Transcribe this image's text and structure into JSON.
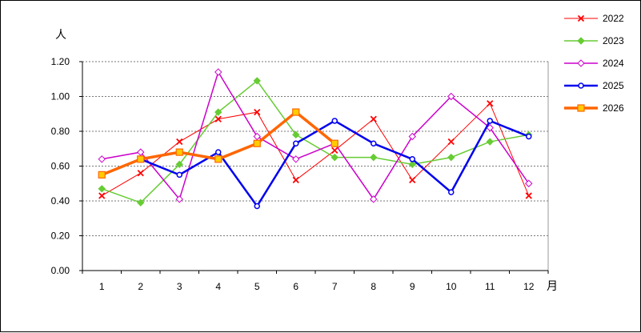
{
  "chart_data": {
    "type": "line",
    "title": "",
    "ylabel": "人",
    "xlabel": "月",
    "categories": [
      "1",
      "2",
      "3",
      "4",
      "5",
      "6",
      "7",
      "8",
      "9",
      "10",
      "11",
      "12"
    ],
    "ylim": [
      0,
      1.2
    ],
    "yticks": [
      "0.00",
      "0.20",
      "0.40",
      "0.60",
      "0.80",
      "1.00",
      "1.20"
    ],
    "grid": "horizontal dashed",
    "legend_position": "right",
    "series": [
      {
        "name": "2022",
        "color": "#ff0000",
        "marker": "x",
        "stroke": "thin",
        "values": [
          0.43,
          0.56,
          0.74,
          0.87,
          0.91,
          0.52,
          0.69,
          0.87,
          0.52,
          0.74,
          0.96,
          0.43
        ]
      },
      {
        "name": "2023",
        "color": "#66cc33",
        "marker": "diamond",
        "stroke": "medium",
        "values": [
          0.47,
          0.39,
          0.61,
          0.91,
          1.09,
          0.78,
          0.65,
          0.65,
          0.61,
          0.65,
          0.74,
          0.78
        ]
      },
      {
        "name": "2024",
        "color": "#cc00cc",
        "marker": "diamond-open",
        "stroke": "medium",
        "values": [
          0.64,
          0.68,
          0.41,
          1.14,
          0.77,
          0.64,
          0.73,
          0.41,
          0.77,
          1.0,
          0.82,
          0.5
        ]
      },
      {
        "name": "2025",
        "color": "#0000ee",
        "marker": "circle-open",
        "stroke": "thick",
        "values": [
          0.55,
          0.64,
          0.55,
          0.68,
          0.37,
          0.73,
          0.86,
          0.73,
          0.64,
          0.45,
          0.86,
          0.77
        ]
      },
      {
        "name": "2026",
        "color": "#ff6600",
        "marker": "square",
        "stroke": "thickest",
        "values": [
          0.55,
          0.64,
          0.68,
          0.64,
          0.73,
          0.91,
          0.73,
          null,
          null,
          null,
          null,
          null
        ]
      }
    ]
  }
}
